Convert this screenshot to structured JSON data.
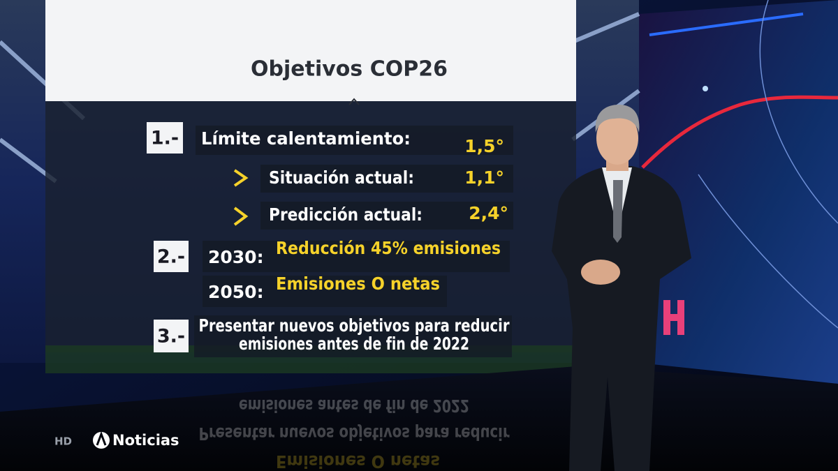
{
  "header": {
    "title": "Objetivos COP26"
  },
  "items": [
    {
      "number": "1.-",
      "label": "Límite calentamiento:",
      "value": "1,5°",
      "sub": [
        {
          "label": "Situación actual:",
          "value": "1,1°"
        },
        {
          "label": "Predicción actual:",
          "value": "2,4°"
        }
      ]
    },
    {
      "number": "2.-",
      "lines": [
        {
          "year": "2030:",
          "text": "Reducción 45% emisiones"
        },
        {
          "year": "2050:",
          "text": "Emisiones O netas"
        }
      ]
    },
    {
      "number": "3.-",
      "lines": [
        "Presentar nuevos objetivos para reducir",
        "emisiones antes de fin de 2022"
      ]
    }
  ],
  "logo": {
    "hd": "HD",
    "brand": "Noticias"
  }
}
